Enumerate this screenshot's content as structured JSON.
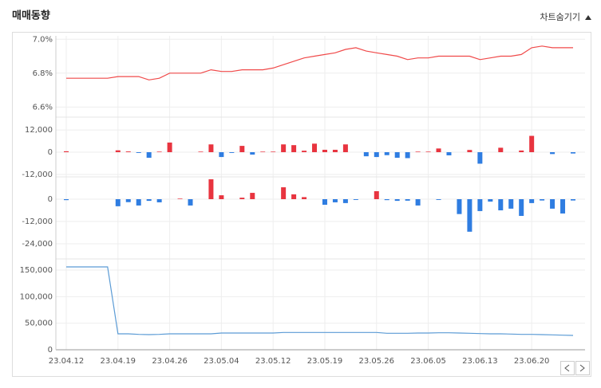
{
  "header": {
    "title": "매매동향",
    "toggle": "차트숨기기"
  },
  "chart_data": [
    {
      "type": "line",
      "color": "#f04a4a",
      "ylim": [
        6.55,
        7.02
      ],
      "yticks": [
        {
          "value": 6.6,
          "label": "6.6%"
        },
        {
          "value": 6.8,
          "label": "6.8%"
        },
        {
          "value": 7.0,
          "label": "7.0%"
        }
      ],
      "values": [
        6.77,
        6.77,
        6.77,
        6.77,
        6.77,
        6.78,
        6.78,
        6.78,
        6.76,
        6.77,
        6.8,
        6.8,
        6.8,
        6.8,
        6.82,
        6.81,
        6.81,
        6.82,
        6.82,
        6.82,
        6.83,
        6.85,
        6.87,
        6.89,
        6.9,
        6.91,
        6.92,
        6.94,
        6.95,
        6.93,
        6.92,
        6.91,
        6.9,
        6.88,
        6.89,
        6.89,
        6.9,
        6.9,
        6.9,
        6.9,
        6.88,
        6.89,
        6.9,
        6.9,
        6.91,
        6.95,
        6.96,
        6.95,
        6.95,
        6.95
      ]
    },
    {
      "type": "bar",
      "positive_color": "#e8343f",
      "negative_color": "#2f7de1",
      "ylim": [
        -13300,
        18900
      ],
      "yticks": [
        {
          "value": -12000,
          "label": "-12,000"
        },
        0,
        {
          "value": 12000,
          "label": "12,000"
        }
      ],
      "values": [
        500,
        0,
        0,
        0,
        0,
        1000,
        400,
        -400,
        -3000,
        300,
        5200,
        0,
        0,
        300,
        4200,
        -2600,
        -400,
        3400,
        -1300,
        300,
        300,
        4200,
        3800,
        800,
        4600,
        1300,
        1300,
        4200,
        0,
        -2200,
        -2600,
        -1600,
        -3000,
        -3200,
        300,
        300,
        2000,
        -1700,
        0,
        1200,
        -6200,
        0,
        2400,
        0,
        900,
        8800,
        0,
        -1000,
        0,
        -700
      ]
    },
    {
      "type": "bar",
      "positive_color": "#e8343f",
      "negative_color": "#2f7de1",
      "ylim": [
        -30000,
        12000
      ],
      "yticks": [
        {
          "value": -24000,
          "label": "-24,000"
        },
        {
          "value": -12000,
          "label": "-12,000"
        },
        0
      ],
      "values": [
        -500,
        0,
        0,
        0,
        0,
        -3800,
        -1600,
        -3400,
        -900,
        -1700,
        0,
        300,
        -3400,
        0,
        10700,
        2100,
        0,
        800,
        3400,
        0,
        0,
        6400,
        2600,
        1100,
        0,
        -3000,
        -1700,
        -2100,
        -400,
        0,
        4300,
        -500,
        -900,
        -800,
        -3400,
        0,
        -400,
        0,
        -8000,
        -17500,
        -6400,
        -1300,
        -6000,
        -5100,
        -9000,
        -2100,
        -700,
        -5100,
        -7700,
        -700
      ]
    },
    {
      "type": "line",
      "color": "#5b9bd5",
      "ylim": [
        0,
        171000
      ],
      "yticks": [
        0,
        {
          "value": 50000,
          "label": "50,000"
        },
        {
          "value": 100000,
          "label": "100,000"
        },
        {
          "value": 150000,
          "label": "150,000"
        }
      ],
      "categories": [
        "23.04.12",
        null,
        null,
        null,
        null,
        "23.04.19",
        null,
        null,
        null,
        null,
        "23.04.26",
        null,
        null,
        null,
        null,
        "23.05.04",
        null,
        null,
        null,
        null,
        "23.05.12",
        null,
        null,
        null,
        null,
        "23.05.19",
        null,
        null,
        null,
        null,
        "23.05.26",
        null,
        null,
        null,
        null,
        "23.06.05",
        null,
        null,
        null,
        null,
        "23.06.13",
        null,
        null,
        null,
        null,
        "23.06.20",
        null,
        null,
        null,
        null
      ],
      "values": [
        156000,
        156000,
        156000,
        156000,
        156000,
        30000,
        30000,
        29000,
        28500,
        29000,
        30000,
        30000,
        30000,
        30000,
        30000,
        31500,
        31500,
        31500,
        31500,
        31500,
        31500,
        32500,
        32500,
        32500,
        32500,
        32500,
        32500,
        32500,
        32500,
        32500,
        32500,
        31000,
        31000,
        31000,
        31500,
        31500,
        32000,
        32000,
        31500,
        31000,
        30500,
        30000,
        30000,
        29500,
        29000,
        29000,
        28500,
        28000,
        27500,
        27000
      ]
    }
  ]
}
